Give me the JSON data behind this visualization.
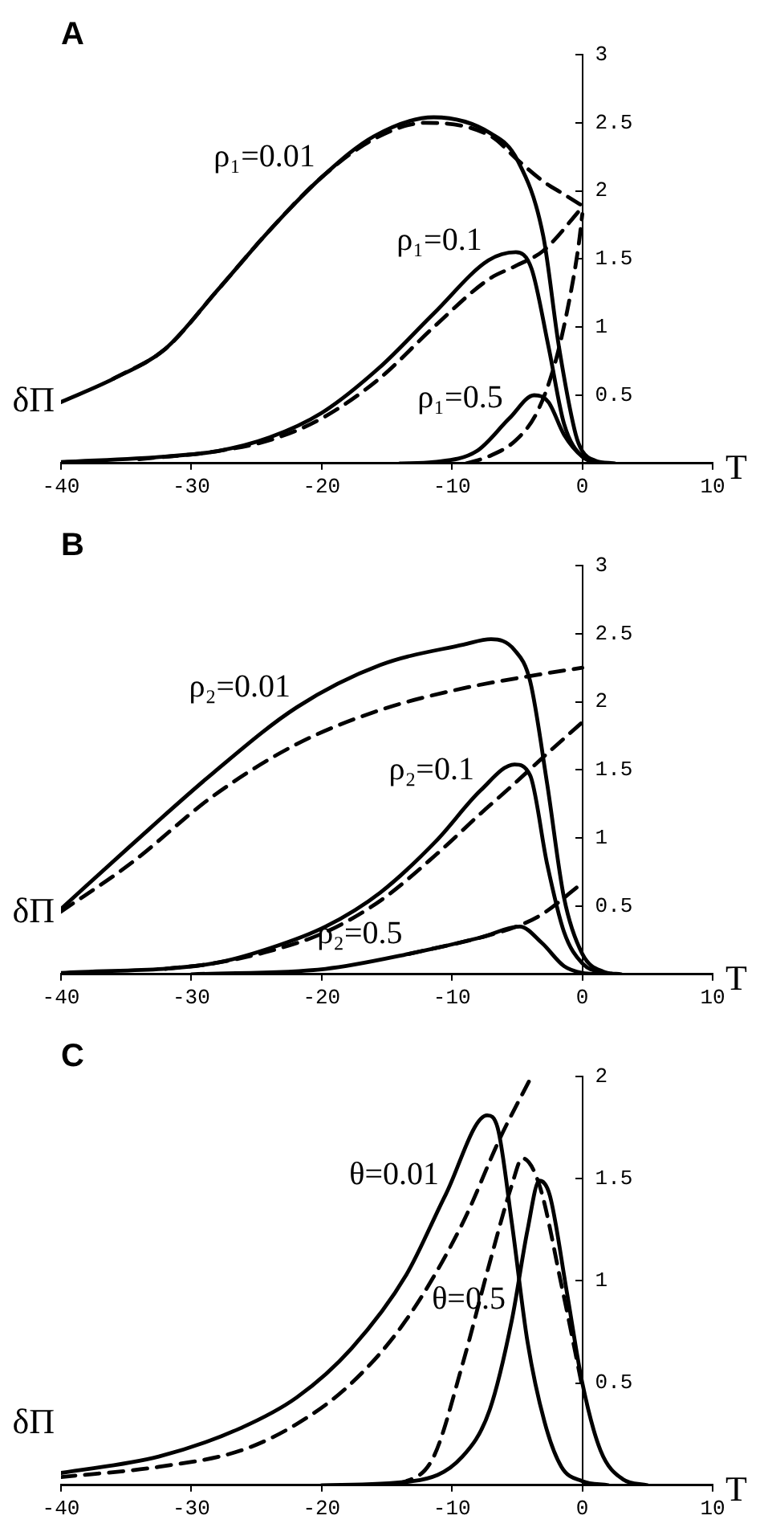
{
  "chart_data": [
    {
      "type": "line",
      "title": "A",
      "xlabel": "T",
      "ylabel": "δΠ",
      "xlim": [
        -40,
        10
      ],
      "xticks": [
        -40,
        -30,
        -20,
        -10,
        0,
        10
      ],
      "ylim": [
        0,
        3
      ],
      "yticks": [
        0.5,
        1,
        1.5,
        2,
        2.5,
        3
      ],
      "legend": false,
      "grid": false,
      "marker": "none",
      "series": [
        {
          "name": "ρ₁=0.01",
          "color": "#000000",
          "line_style": "solid",
          "x": [
            -40,
            -36,
            -32,
            -28,
            -24,
            -20,
            -16,
            -11.4,
            -7,
            -5,
            -3,
            -1.8,
            -0.5,
            0,
            1,
            2.5
          ],
          "values": [
            0.45,
            0.62,
            0.84,
            1.27,
            1.71,
            2.1,
            2.4,
            2.54,
            2.42,
            2.23,
            1.67,
            0.86,
            0.21,
            0.09,
            0.02,
            0
          ]
        },
        {
          "color": "#000000",
          "line_style": "dashed",
          "x": [
            -36,
            -32,
            -28,
            -24,
            -20,
            -16,
            -12,
            -7,
            -5,
            -3,
            -1.5,
            0
          ],
          "values": [
            0.62,
            0.84,
            1.27,
            1.71,
            2.1,
            2.38,
            2.5,
            2.4,
            2.23,
            2.07,
            1.98,
            1.89
          ]
        },
        {
          "name": "ρ₁=0.1",
          "color": "#000000",
          "line_style": "solid",
          "x": [
            -40,
            -32,
            -28,
            -24,
            -20,
            -15.6,
            -11.4,
            -7.2,
            -5.1,
            -3.9,
            -2.6,
            -1.4,
            0,
            1.5
          ],
          "values": [
            0.01,
            0.05,
            0.09,
            0.19,
            0.37,
            0.7,
            1.1,
            1.49,
            1.55,
            1.43,
            0.86,
            0.29,
            0.05,
            0
          ]
        },
        {
          "color": "#000000",
          "line_style": "dashed",
          "x": [
            -34,
            -28,
            -24,
            -20,
            -15.6,
            -11.4,
            -7.2,
            -5.1,
            -3,
            0
          ],
          "values": [
            0.03,
            0.09,
            0.17,
            0.33,
            0.62,
            1,
            1.35,
            1.45,
            1.56,
            1.88
          ]
        },
        {
          "name": "ρ₁=0.5",
          "color": "#000000",
          "line_style": "solid",
          "x": [
            -14,
            -11.4,
            -8.1,
            -5.6,
            -3.7,
            -2.6,
            -1.4,
            0,
            1.2
          ],
          "values": [
            0,
            0.01,
            0.09,
            0.33,
            0.5,
            0.45,
            0.21,
            0.05,
            0
          ]
        },
        {
          "color": "#000000",
          "line_style": "dashed",
          "x": [
            -8.9,
            -7.2,
            -5.1,
            -3.5,
            -2.2,
            -1.2,
            -0.3,
            0
          ],
          "values": [
            0,
            0.05,
            0.17,
            0.37,
            0.7,
            1.1,
            1.59,
            1.83
          ]
        }
      ]
    },
    {
      "type": "line",
      "title": "B",
      "xlabel": "T",
      "ylabel": "δΠ",
      "xlim": [
        -40,
        10
      ],
      "xticks": [
        -40,
        -30,
        -20,
        -10,
        0,
        10
      ],
      "ylim": [
        0,
        3
      ],
      "yticks": [
        0.5,
        1,
        1.5,
        2,
        2.5,
        3
      ],
      "legend": false,
      "grid": false,
      "marker": "none",
      "series": [
        {
          "name": "ρ₂=0.01",
          "color": "#000000",
          "line_style": "solid",
          "x": [
            -40,
            -34.7,
            -28.3,
            -21.9,
            -15.5,
            -9.1,
            -7,
            -5.2,
            -4,
            -2.7,
            -1.4,
            0,
            1.6,
            3
          ],
          "values": [
            0.48,
            0.94,
            1.48,
            1.96,
            2.27,
            2.42,
            2.46,
            2.38,
            2.15,
            1.4,
            0.56,
            0.15,
            0.02,
            0
          ]
        },
        {
          "color": "#000000",
          "line_style": "dashed",
          "x": [
            -40,
            -34.7,
            -28.3,
            -21.9,
            -15.5,
            -9.1,
            -2.7,
            0
          ],
          "values": [
            0.46,
            0.81,
            1.31,
            1.69,
            1.94,
            2.1,
            2.21,
            2.25
          ]
        },
        {
          "name": "ρ₂=0.1",
          "color": "#000000",
          "line_style": "solid",
          "x": [
            -40,
            -28.3,
            -24,
            -19.7,
            -15.5,
            -11.2,
            -7.8,
            -5.2,
            -4,
            -2.7,
            -1.4,
            0,
            2
          ],
          "values": [
            0.01,
            0.08,
            0.19,
            0.35,
            0.6,
            0.98,
            1.35,
            1.54,
            1.46,
            0.81,
            0.31,
            0.08,
            0
          ]
        },
        {
          "color": "#000000",
          "line_style": "dashed",
          "x": [
            -32,
            -28.3,
            -24,
            -19.7,
            -15.5,
            -11.2,
            -7.8,
            -5.2,
            -2.7,
            0
          ],
          "values": [
            0.04,
            0.08,
            0.17,
            0.31,
            0.54,
            0.88,
            1.18,
            1.4,
            1.62,
            1.85
          ]
        },
        {
          "name": "ρ₂=0.5",
          "color": "#000000",
          "line_style": "solid",
          "x": [
            -30,
            -19.7,
            -13.3,
            -7.8,
            -4.8,
            -3.1,
            -1.4,
            0,
            1.5
          ],
          "values": [
            0,
            0.04,
            0.15,
            0.27,
            0.35,
            0.23,
            0.06,
            0.01,
            0
          ]
        },
        {
          "color": "#000000",
          "line_style": "dashed",
          "x": [
            -13.3,
            -7.8,
            -4.8,
            -3.1,
            0
          ],
          "values": [
            0.15,
            0.27,
            0.36,
            0.44,
            0.67
          ]
        }
      ]
    },
    {
      "type": "line",
      "title": "C",
      "xlabel": "T",
      "ylabel": "δΠ",
      "xlim": [
        -40,
        10
      ],
      "xticks": [
        -40,
        -30,
        -20,
        -10,
        0,
        10
      ],
      "ylim": [
        0,
        2
      ],
      "yticks": [
        0.5,
        1,
        1.5,
        2
      ],
      "legend": false,
      "grid": false,
      "marker": "none",
      "series": [
        {
          "name": "θ=0.01",
          "color": "#000000",
          "line_style": "solid",
          "x": [
            -40,
            -32.5,
            -26.2,
            -21.9,
            -17.7,
            -13.5,
            -10.5,
            -7.3,
            -6.5,
            -5.4,
            -4.2,
            -2.9,
            -1.6,
            0,
            2
          ],
          "values": [
            0.06,
            0.14,
            0.28,
            0.43,
            0.67,
            1.03,
            1.42,
            1.81,
            1.75,
            1.28,
            0.7,
            0.31,
            0.09,
            0.02,
            0
          ]
        },
        {
          "color": "#000000",
          "line_style": "dashed",
          "x": [
            -40,
            -32.5,
            -26.2,
            -21.9,
            -17.7,
            -13.5,
            -9.2,
            -6.3,
            -3.9
          ],
          "values": [
            0.04,
            0.09,
            0.17,
            0.3,
            0.5,
            0.81,
            1.28,
            1.7,
            2
          ]
        },
        {
          "name": "θ=0.5",
          "color": "#000000",
          "line_style": "solid",
          "x": [
            -20,
            -13,
            -9.2,
            -7.1,
            -5.4,
            -4.2,
            -3.3,
            -2.5,
            -1.2,
            0,
            1.4,
            3.1,
            5
          ],
          "values": [
            0,
            0.02,
            0.14,
            0.37,
            0.81,
            1.25,
            1.49,
            1.42,
            0.95,
            0.5,
            0.17,
            0.03,
            0
          ]
        },
        {
          "color": "#000000",
          "line_style": "dashed",
          "x": [
            -16,
            -13.5,
            -11.4,
            -9.2,
            -7.1,
            -5.4,
            -4.6,
            -3.3,
            -1.6,
            0
          ],
          "values": [
            0,
            0.02,
            0.14,
            0.59,
            1.09,
            1.47,
            1.6,
            1.47,
            0.98,
            0.48
          ]
        }
      ]
    }
  ]
}
